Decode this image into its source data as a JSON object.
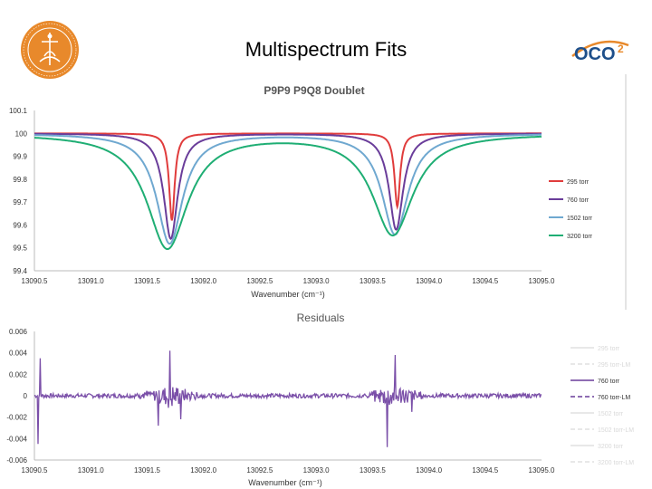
{
  "slide": {
    "title": "Multispectrum Fits",
    "left_logo": "university-seal",
    "right_logo_text": "OCO2"
  },
  "colors": {
    "s295": "#e03c3c",
    "s760": "#6a3d9a",
    "s1502": "#6fa8d0",
    "s3200": "#1fae74",
    "residual": "#7a4fa8",
    "logo_orange": "#e8892b"
  },
  "chart_data": [
    {
      "type": "line",
      "title": "P9P9 P9Q8 Doublet",
      "xlabel": "Wavenumber (cm⁻¹)",
      "ylabel": "",
      "xlim": [
        13090.5,
        13095.0
      ],
      "ylim": [
        99.4,
        100.1
      ],
      "x_ticks": [
        "13090.5",
        "13091.0",
        "13091.5",
        "13092.0",
        "13092.5",
        "13093.0",
        "13093.5",
        "13094.0",
        "13094.5",
        "13095.0"
      ],
      "y_ticks": [
        "100.1",
        "100",
        "99.9",
        "99.8",
        "99.7",
        "99.6",
        "99.5",
        "99.4"
      ],
      "legend_position": "right",
      "series": [
        {
          "name": "295 torr",
          "color": "#e03c3c",
          "line1": {
            "center": 13091.72,
            "depth": 0.38,
            "hw": 0.03
          },
          "line2": {
            "center": 13093.72,
            "depth": 0.32,
            "hw": 0.03
          }
        },
        {
          "name": "760 torr",
          "color": "#6a3d9a",
          "line1": {
            "center": 13091.71,
            "depth": 0.46,
            "hw": 0.075
          },
          "line2": {
            "center": 13093.71,
            "depth": 0.42,
            "hw": 0.075
          }
        },
        {
          "name": "1502 torr",
          "color": "#6fa8d0",
          "line1": {
            "center": 13091.7,
            "depth": 0.48,
            "hw": 0.14
          },
          "line2": {
            "center": 13093.7,
            "depth": 0.44,
            "hw": 0.14
          }
        },
        {
          "name": "3200 torr",
          "color": "#1fae74",
          "line1": {
            "center": 13091.68,
            "depth": 0.5,
            "hw": 0.22
          },
          "line2": {
            "center": 13093.68,
            "depth": 0.44,
            "hw": 0.22
          }
        }
      ]
    },
    {
      "type": "line",
      "title": "Residuals",
      "xlabel": "Wavenumber (cm⁻¹)",
      "ylabel": "",
      "xlim": [
        13090.5,
        13095.0
      ],
      "ylim": [
        -0.006,
        0.006
      ],
      "x_ticks": [
        "13090.5",
        "13091.0",
        "13091.5",
        "13092.0",
        "13092.5",
        "13093.0",
        "13093.5",
        "13094.0",
        "13094.5",
        "13095.0"
      ],
      "y_ticks": [
        "0.006",
        "0.004",
        "0.002",
        "0",
        "-0.002",
        "-0.004",
        "-0.006"
      ],
      "legend_position": "right",
      "legend": [
        {
          "name": "295 torr",
          "faint": true
        },
        {
          "name": "295 torr-LM",
          "faint": true
        },
        {
          "name": "760 torr",
          "faint": false
        },
        {
          "name": "760 torr-LM",
          "faint": false
        },
        {
          "name": "1502 torr",
          "faint": true
        },
        {
          "name": "1502 torr-LM",
          "faint": true
        },
        {
          "name": "3200 torr",
          "faint": true
        },
        {
          "name": "3200 torr-LM",
          "faint": true
        }
      ],
      "series": [
        {
          "name": "760 torr",
          "color": "#7a4fa8",
          "features": [
            {
              "x": 13090.53,
              "y": -0.0045
            },
            {
              "x": 13090.55,
              "y": 0.0035
            },
            {
              "x": 13091.7,
              "y": 0.0042
            },
            {
              "x": 13091.6,
              "y": -0.0028
            },
            {
              "x": 13091.8,
              "y": -0.0022
            },
            {
              "x": 13093.7,
              "y": 0.0038
            },
            {
              "x": 13093.63,
              "y": -0.0048
            },
            {
              "x": 13093.85,
              "y": -0.0015
            }
          ]
        }
      ]
    }
  ]
}
